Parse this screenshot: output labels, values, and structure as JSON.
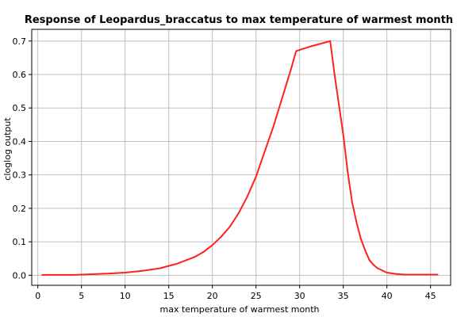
{
  "chart_data": {
    "type": "line",
    "title": "Response of Leopardus_braccatus to max temperature of warmest month",
    "xlabel": "max temperature of warmest month",
    "ylabel": "cloglog output",
    "xlim": [
      -0.7,
      47.3
    ],
    "ylim": [
      -0.03,
      0.735
    ],
    "xticks": [
      "0",
      "5",
      "10",
      "15",
      "20",
      "25",
      "30",
      "35",
      "40",
      "45"
    ],
    "yticks": [
      "0.0",
      "0.1",
      "0.2",
      "0.3",
      "0.4",
      "0.5",
      "0.6",
      "0.7"
    ],
    "grid": true,
    "series": [
      {
        "color": "#ff2020",
        "x": [
          0.5,
          2,
          4,
          5,
          6,
          8,
          10,
          12,
          14,
          16,
          18,
          19,
          20,
          21,
          22,
          23,
          24,
          25,
          26,
          27,
          28,
          29,
          29.6,
          31,
          33.5,
          34,
          35,
          35.5,
          36,
          36.5,
          37,
          37.5,
          38,
          38.5,
          39,
          40,
          41,
          42,
          44,
          45.8
        ],
        "y": [
          0.001,
          0.001,
          0.001,
          0.002,
          0.003,
          0.005,
          0.008,
          0.013,
          0.021,
          0.035,
          0.055,
          0.07,
          0.09,
          0.115,
          0.145,
          0.185,
          0.235,
          0.295,
          0.37,
          0.445,
          0.53,
          0.615,
          0.67,
          0.682,
          0.7,
          0.6,
          0.42,
          0.31,
          0.22,
          0.16,
          0.11,
          0.075,
          0.045,
          0.03,
          0.02,
          0.008,
          0.004,
          0.002,
          0.002,
          0.002
        ]
      }
    ]
  }
}
